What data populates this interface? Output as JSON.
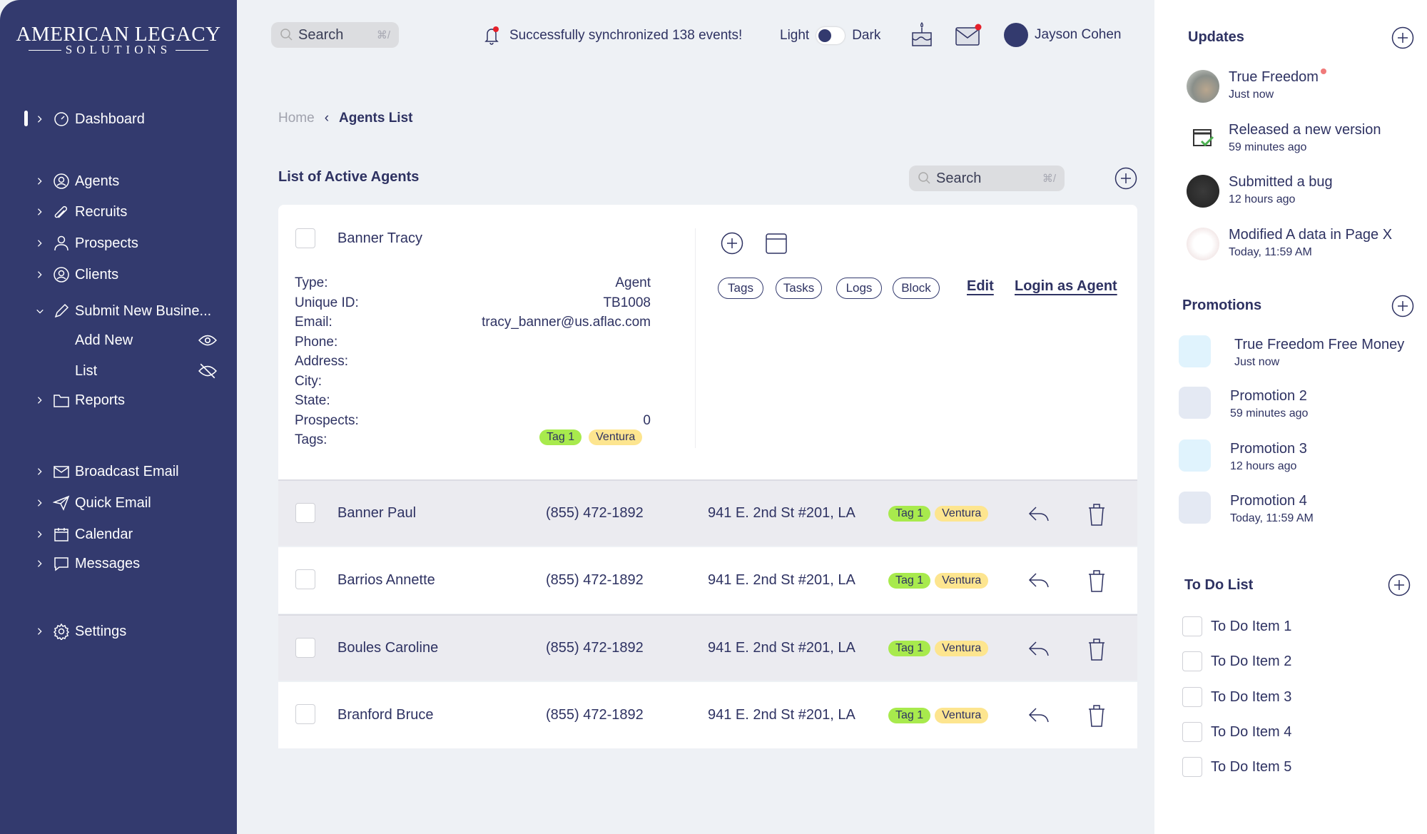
{
  "brand": {
    "line1": "AMERICAN LEGACY",
    "line2": "SOLUTIONS"
  },
  "sidebar": {
    "items": [
      {
        "label": "Dashboard",
        "icon": "gauge-icon"
      },
      {
        "label": "Agents",
        "icon": "user-circle-icon"
      },
      {
        "label": "Recruits",
        "icon": "paperclip-icon"
      },
      {
        "label": "Prospects",
        "icon": "user-icon"
      },
      {
        "label": "Clients",
        "icon": "user-circle-icon"
      },
      {
        "label": "Submit New Busine...",
        "icon": "pencil-icon"
      },
      {
        "label": "Reports",
        "icon": "folder-icon"
      },
      {
        "label": "Broadcast Email",
        "icon": "mail-icon"
      },
      {
        "label": "Quick Email",
        "icon": "send-icon"
      },
      {
        "label": "Calendar",
        "icon": "calendar-icon"
      },
      {
        "label": "Messages",
        "icon": "message-icon"
      },
      {
        "label": "Settings",
        "icon": "gear-icon"
      }
    ],
    "subitems": [
      {
        "label": "Add New",
        "icon": "eye-icon"
      },
      {
        "label": "List",
        "icon": "eye-off-icon"
      }
    ]
  },
  "topbar": {
    "search_placeholder": "Search",
    "shortcut": "⌘/",
    "notification": "Successfully synchronized 138 events!",
    "theme_light": "Light",
    "theme_dark": "Dark",
    "user_name": "Jayson Cohen"
  },
  "breadcrumb": {
    "home": "Home",
    "current": "Agents List"
  },
  "main": {
    "title": "List of Active Agents",
    "search_placeholder": "Search",
    "shortcut": "⌘/"
  },
  "detail": {
    "name": "Banner Tracy",
    "fields": [
      {
        "label": "Type:",
        "value": "Agent"
      },
      {
        "label": "Unique ID:",
        "value": "TB1008"
      },
      {
        "label": "Email:",
        "value": "tracy_banner@us.aflac.com"
      },
      {
        "label": "Phone:",
        "value": ""
      },
      {
        "label": "Address:",
        "value": ""
      },
      {
        "label": "City:",
        "value": ""
      },
      {
        "label": "State:",
        "value": ""
      },
      {
        "label": "Prospects:",
        "value": "0"
      },
      {
        "label": "Tags:",
        "value": ""
      }
    ],
    "tags": [
      "Tag 1",
      "Ventura"
    ],
    "actions": [
      "Tags",
      "Tasks",
      "Logs",
      "Block"
    ],
    "edit": "Edit",
    "login": "Login as Agent"
  },
  "rows": [
    {
      "name": "Banner Paul",
      "phone": "(855) 472-1892",
      "address": "941 E. 2nd St #201, LA",
      "tags": [
        "Tag 1",
        "Ventura"
      ]
    },
    {
      "name": "Barrios Annette",
      "phone": "(855) 472-1892",
      "address": "941 E. 2nd St #201, LA",
      "tags": [
        "Tag 1",
        "Ventura"
      ]
    },
    {
      "name": "Boules Caroline",
      "phone": "(855) 472-1892",
      "address": "941 E. 2nd St #201, LA",
      "tags": [
        "Tag 1",
        "Ventura"
      ]
    },
    {
      "name": "Branford Bruce",
      "phone": "(855) 472-1892",
      "address": "941 E. 2nd St #201, LA",
      "tags": [
        "Tag 1",
        "Ventura"
      ]
    }
  ],
  "updates": {
    "title": "Updates",
    "items": [
      {
        "title": "True Freedom",
        "time": "Just now",
        "unread": true
      },
      {
        "title": "Released a new version",
        "time": "59 minutes ago"
      },
      {
        "title": "Submitted a bug",
        "time": "12 hours ago"
      },
      {
        "title": "Modified A data in Page X",
        "time": "Today, 11:59 AM"
      }
    ]
  },
  "promotions": {
    "title": "Promotions",
    "items": [
      {
        "title": "True Freedom Free Money",
        "time": "Just now",
        "color": "#e0f3fd"
      },
      {
        "title": "Promotion 2",
        "time": "59 minutes ago",
        "color": "#e4e9f3"
      },
      {
        "title": "Promotion 3",
        "time": "12 hours ago",
        "color": "#e0f3fd"
      },
      {
        "title": "Promotion 4",
        "time": "Today, 11:59 AM",
        "color": "#e4e9f3"
      }
    ]
  },
  "todo": {
    "title": "To Do List",
    "items": [
      "To Do Item 1",
      "To Do Item 2",
      "To Do Item 3",
      "To Do Item 4",
      "To Do Item 5"
    ]
  },
  "colors": {
    "sidebar": "#333a6e",
    "accent": "#2e3262",
    "tag_green": "#a8ea4d",
    "tag_yellow": "#fde58f"
  }
}
